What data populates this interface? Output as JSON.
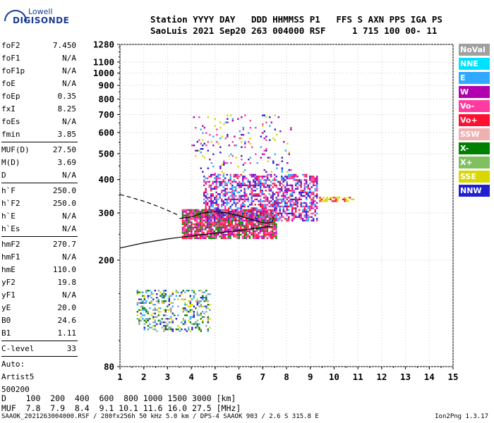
{
  "logo": {
    "line1": "Lowell",
    "line2": "DIGISONDE"
  },
  "header": {
    "line1": "Station YYYY DAY   DDD HHMMSS P1   FFS S AXN PPS IGA PS",
    "line2": "SaoLuis 2021 Sep20 263 004000 RSF     1 715 100 00- 11"
  },
  "params": {
    "group1": [
      {
        "k": "foF2",
        "v": "7.450"
      },
      {
        "k": "foF1",
        "v": "N/A"
      },
      {
        "k": "foF1p",
        "v": "N/A"
      },
      {
        "k": "foE",
        "v": "N/A"
      },
      {
        "k": "foEp",
        "v": "0.35"
      },
      {
        "k": "fxI",
        "v": "8.25"
      },
      {
        "k": "foEs",
        "v": "N/A"
      },
      {
        "k": "fmin",
        "v": "3.85"
      }
    ],
    "group2": [
      {
        "k": "MUF(D)",
        "v": "27.50"
      },
      {
        "k": "M(D)",
        "v": "3.69"
      },
      {
        "k": "D",
        "v": "N/A"
      }
    ],
    "group3": [
      {
        "k": "h`F",
        "v": "250.0"
      },
      {
        "k": "h`F2",
        "v": "250.0"
      },
      {
        "k": "h`E",
        "v": "N/A"
      },
      {
        "k": "h`Es",
        "v": "N/A"
      }
    ],
    "group4": [
      {
        "k": "hmF2",
        "v": "270.7"
      },
      {
        "k": "hmF1",
        "v": "N/A"
      },
      {
        "k": "hmE",
        "v": "110.0"
      },
      {
        "k": "yF2",
        "v": "19.8"
      },
      {
        "k": "yF1",
        "v": "N/A"
      },
      {
        "k": "yE",
        "v": "20.0"
      },
      {
        "k": "B0",
        "v": "24.6"
      },
      {
        "k": "B1",
        "v": "1.11"
      }
    ],
    "group5": [
      {
        "k": "C-level",
        "v": "33"
      }
    ],
    "auto": [
      "Auto:",
      "Artist5",
      "500200"
    ]
  },
  "legend": [
    {
      "label": "NoVal",
      "color": "#a0a0a0"
    },
    {
      "label": "NNE",
      "color": "#00e0ff"
    },
    {
      "label": "E",
      "color": "#30a8ff"
    },
    {
      "label": "W",
      "color": "#b000b0"
    },
    {
      "label": "Vo-",
      "color": "#ff3aa0"
    },
    {
      "label": "Vo+",
      "color": "#ff1030"
    },
    {
      "label": "SSW",
      "color": "#f0b0b0"
    },
    {
      "label": "X-",
      "color": "#008000"
    },
    {
      "label": "X+",
      "color": "#80c060"
    },
    {
      "label": "SSE",
      "color": "#d8d800"
    },
    {
      "label": "NNW",
      "color": "#2020d0"
    }
  ],
  "footer": {
    "line1": "D    100  200  400  600  800 1000 1500 3000 [km]",
    "line2": "MUF  7.8  7.9  8.4  9.1 10.1 11.6 16.0 27.5 [MHz]",
    "bottom": "SAAOK_2021263004000.RSF / 280fx256h 50 kHz 5.0 km / DPS-4 SAAOK 903 / 2.6 S 315.8 E",
    "version": "Ion2Png 1.3.17"
  },
  "chart_data": {
    "type": "scatter",
    "title": "",
    "xlabel": "",
    "ylabel": "",
    "xlim": [
      1,
      15
    ],
    "ylim": [
      80,
      1280
    ],
    "y_scale": "log",
    "x_ticks": [
      1,
      2,
      3,
      4,
      5,
      6,
      7,
      8,
      9,
      10,
      11,
      12,
      13,
      14,
      15
    ],
    "y_ticks": [
      80,
      200,
      300,
      400,
      500,
      600,
      700,
      800,
      900,
      1000,
      1100,
      1280
    ],
    "traces": [
      {
        "name": "profile_extrapolated",
        "style": "dashed",
        "x": [
          1.0,
          1.5,
          2.0,
          2.5,
          3.0,
          3.5
        ],
        "y": [
          352,
          342,
          332,
          320,
          307,
          293
        ]
      },
      {
        "name": "profile",
        "style": "solid",
        "x": [
          3.5,
          4.0,
          4.5,
          5.0,
          5.5,
          6.0,
          6.5,
          7.0,
          7.2,
          7.4,
          7.45
        ],
        "y": [
          286,
          290,
          300,
          304,
          300,
          293,
          284,
          276,
          275,
          278,
          290
        ]
      },
      {
        "name": "trace_line",
        "style": "solid",
        "x": [
          1.0,
          2.0,
          3.0,
          3.6,
          4.0,
          5.0,
          6.0,
          7.0,
          7.45
        ],
        "y": [
          222,
          232,
          240,
          244,
          246,
          252,
          258,
          265,
          268
        ]
      }
    ],
    "clusters": [
      {
        "x": [
          3.6,
          7.6
        ],
        "y": [
          240,
          310
        ],
        "density": 0.85,
        "colors": [
          "#ff1030",
          "#ff3aa0",
          "#b000b0",
          "#008000"
        ]
      },
      {
        "x": [
          4.5,
          9.3
        ],
        "y": [
          280,
          420
        ],
        "density": 0.55,
        "colors": [
          "#ff1030",
          "#ff3aa0",
          "#b000b0",
          "#2020d0",
          "#30a8ff"
        ]
      },
      {
        "x": [
          4.0,
          8.2
        ],
        "y": [
          420,
          700
        ],
        "density": 0.08,
        "colors": [
          "#b000b0",
          "#ff3aa0",
          "#d8d800",
          "#30a8ff",
          "#2020d0"
        ]
      },
      {
        "x": [
          9.3,
          11.0
        ],
        "y": [
          330,
          345
        ],
        "density": 0.35,
        "colors": [
          "#d8d800",
          "#ff1030"
        ]
      },
      {
        "x": [
          1.7,
          4.8
        ],
        "y": [
          108,
          155
        ],
        "density": 0.35,
        "colors": [
          "#008000",
          "#30a8ff",
          "#a0a0a0",
          "#2020d0",
          "#d8d800"
        ]
      }
    ]
  }
}
